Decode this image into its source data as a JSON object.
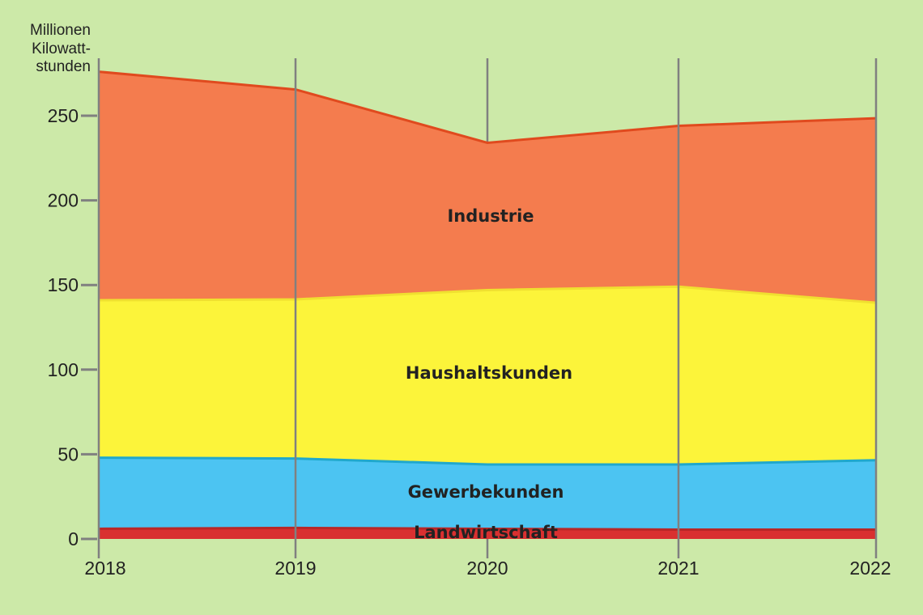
{
  "chart_data": {
    "type": "area",
    "stacked": true,
    "title": "",
    "xlabel": "",
    "ylabel": "Millionen Kilowatt- stunden",
    "ylabel_lines": [
      "Millionen",
      "Kilowatt-",
      "stunden"
    ],
    "ylim": [
      0,
      280
    ],
    "yticks": [
      0,
      50,
      100,
      150,
      200,
      250
    ],
    "ytick_labels": [
      "0",
      "50",
      "100",
      "150",
      "200",
      "250"
    ],
    "categories": [
      "2018",
      "2019",
      "2020",
      "2021",
      "2022"
    ],
    "grid": "vertical lines at each year",
    "series": [
      {
        "name": "Landwirtschaft",
        "color": "#d93030",
        "line": "#b82828",
        "values": [
          6,
          6.5,
          6,
          5.5,
          5.5
        ]
      },
      {
        "name": "Gewerbekunden",
        "color": "#4cc4f2",
        "line": "#20a8cc",
        "values": [
          42,
          41,
          38,
          38.5,
          41
        ]
      },
      {
        "name": "Haushaltskunden",
        "color": "#fcf43a",
        "line": "#f0e030",
        "values": [
          93,
          94,
          103,
          105,
          93
        ]
      },
      {
        "name": "Industrie",
        "color": "#f47c4e",
        "line": "#e04a1e",
        "values": [
          135,
          124,
          87,
          95,
          109
        ]
      }
    ]
  }
}
